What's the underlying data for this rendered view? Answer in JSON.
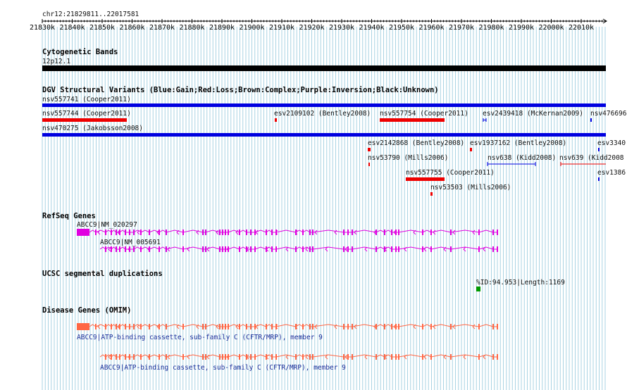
{
  "ruler": {
    "range_label": "chr12:21829811..22017581",
    "ticks": [
      "21830k",
      "21840k",
      "21850k",
      "21860k",
      "21870k",
      "21880k",
      "21890k",
      "21900k",
      "21910k",
      "21920k",
      "21930k",
      "21940k",
      "21950k",
      "21960k",
      "21970k",
      "21980k",
      "21990k",
      "22000k",
      "22010k"
    ]
  },
  "tracks": {
    "cytoband": {
      "title": "Cytogenetic Bands",
      "band": "12p12.1"
    },
    "dgv": {
      "title": "DGV Structural Variants (Blue:Gain;Red:Loss;Brown:Complex;Purple:Inversion;Black:Unknown)",
      "features": [
        {
          "label": "nsv557741 (Cooper2011)",
          "color": "#0000e0"
        },
        {
          "label": "nsv557744 (Cooper2011)",
          "color": "#ee0000"
        },
        {
          "label": "esv2109102 (Bentley2008)",
          "color": "#ee0000"
        },
        {
          "label": "nsv557754 (Cooper2011)",
          "color": "#ee0000"
        },
        {
          "label": "esv2439418 (McKernan2009)",
          "color": "#0000e0"
        },
        {
          "label": "nsv476696",
          "color": "#0000e0"
        },
        {
          "label": "nsv470275 (Jakobsson2008)",
          "color": "#0000e0"
        },
        {
          "label": "esv2142868 (Bentley2008)",
          "color": "#ee0000"
        },
        {
          "label": "esv1937162 (Bentley2008)",
          "color": "#ee0000"
        },
        {
          "label": "esv3340",
          "color": "#0000e0"
        },
        {
          "label": "nsv53790 (Mills2006)",
          "color": "#ee0000"
        },
        {
          "label": "nsv638 (Kidd2008)",
          "color": "#0000e0"
        },
        {
          "label": "nsv639 (Kidd2008",
          "color": "#ee0000"
        },
        {
          "label": "nsv557755 (Cooper2011)",
          "color": "#ee0000"
        },
        {
          "label": "esv1386",
          "color": "#0000e0"
        },
        {
          "label": "nsv53503 (Mills2006)",
          "color": "#ee0000"
        }
      ]
    },
    "refseq": {
      "title": "RefSeq Genes",
      "transcripts": [
        {
          "label": "ABCC9|NM_020297",
          "color": "#e000e0"
        },
        {
          "label": "ABCC9|NM_005691",
          "color": "#e000e0"
        }
      ]
    },
    "segdup": {
      "title": "UCSC segmental duplications",
      "label": "%ID:94.953|Length:1169",
      "color": "#009900"
    },
    "omim": {
      "title": "Disease Genes (OMIM)",
      "genes": [
        {
          "label": "ABCC9|ATP-binding cassette, sub-family C (CFTR/MRP), member 9",
          "color": "#ff6644"
        },
        {
          "label": "ABCC9|ATP-binding cassette, sub-family C (CFTR/MRP), member 9",
          "color": "#ff6644"
        }
      ]
    }
  },
  "colors": {
    "grid": "#a9d3e3",
    "ruler": "#000000",
    "cyto_band": "#000000"
  }
}
